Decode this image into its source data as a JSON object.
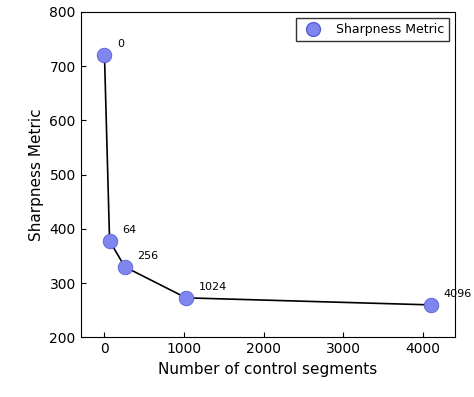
{
  "chart_data": {
    "type": "line",
    "x_label": "Number of control segments",
    "y_label": "Sharpness Metric",
    "series": [
      {
        "name": "Sharpness Metric",
        "color": "#7f86f0",
        "marker": "o",
        "line_style": "solid",
        "x": [
          0,
          64,
          256,
          1024,
          4096
        ],
        "values": [
          720,
          378,
          330,
          273,
          260
        ]
      }
    ],
    "annotations": [
      "0",
      "64",
      "256",
      "1024",
      "4096"
    ],
    "xlim": [
      -300,
      4400
    ],
    "xticks": [
      0,
      1000,
      2000,
      3000,
      4000
    ],
    "ylim": [
      200,
      800
    ],
    "yticks": [
      200,
      300,
      400,
      500,
      600,
      700,
      800
    ],
    "legend": "upper right",
    "grid": false
  }
}
